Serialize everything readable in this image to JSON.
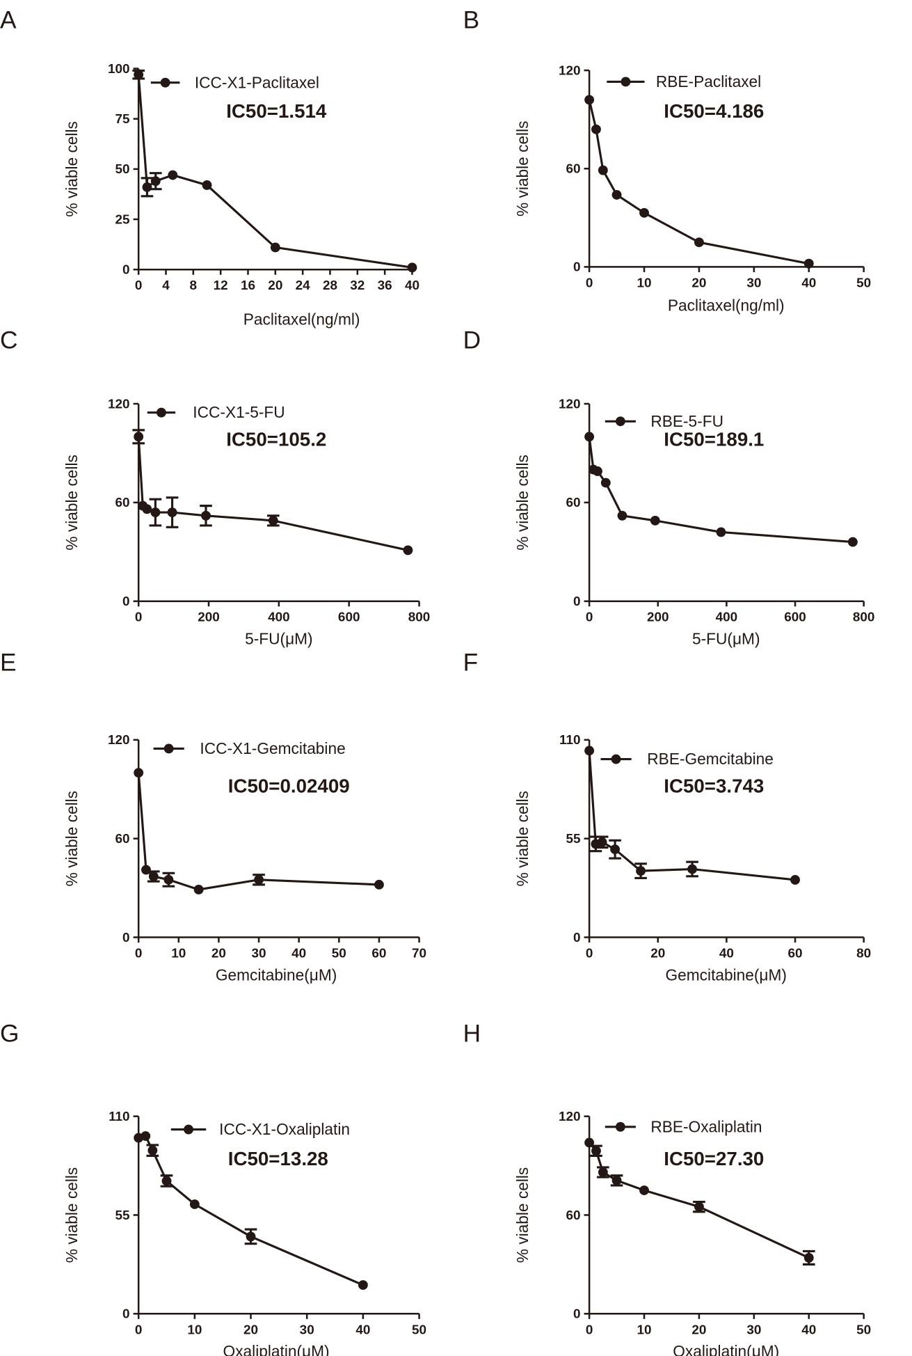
{
  "colors": {
    "ink": "#231815",
    "background": "#ffffff"
  },
  "chart_data": [
    {
      "panel": "A",
      "type": "line",
      "legend": "ICC-X1-Paclitaxel",
      "ic50": "IC50=1.514",
      "xlabel": "Paclitaxel(ng/ml)",
      "ylabel": "% viable cells",
      "xlim": [
        0,
        40
      ],
      "xticks": [
        0,
        4,
        8,
        12,
        16,
        20,
        24,
        28,
        32,
        36,
        40
      ],
      "ylim": [
        0,
        100
      ],
      "yticks": [
        0,
        25,
        50,
        75,
        100
      ],
      "x": [
        0,
        1.25,
        2.5,
        5,
        10,
        20,
        40
      ],
      "y": [
        97,
        41,
        44,
        47,
        42,
        11,
        1
      ],
      "err": [
        2,
        4.5,
        4,
        0,
        0,
        0,
        0
      ]
    },
    {
      "panel": "B",
      "type": "line",
      "legend": "RBE-Paclitaxel",
      "ic50": "IC50=4.186",
      "xlabel": "Paclitaxel(ng/ml)",
      "ylabel": "% viable cells",
      "xlim": [
        0,
        50
      ],
      "xticks": [
        0,
        10,
        20,
        30,
        40,
        50
      ],
      "ylim": [
        0,
        120
      ],
      "yticks": [
        0,
        60,
        120
      ],
      "x": [
        0,
        1.25,
        2.5,
        5,
        10,
        20,
        40
      ],
      "y": [
        102,
        84,
        59,
        44,
        33,
        15,
        2
      ],
      "err": [
        0,
        0,
        0,
        0,
        0,
        0,
        0
      ]
    },
    {
      "panel": "C",
      "type": "line",
      "legend": "ICC-X1-5-FU",
      "ic50": "IC50=105.2",
      "xlabel": "5-FU(μM)",
      "ylabel": "% viable cells",
      "xlim": [
        0,
        800
      ],
      "xticks": [
        0,
        200,
        400,
        600,
        800
      ],
      "ylim": [
        0,
        120
      ],
      "yticks": [
        0,
        60,
        120
      ],
      "x": [
        0,
        12,
        24,
        48,
        96,
        192,
        384,
        768
      ],
      "y": [
        100,
        58,
        56,
        54,
        54,
        52,
        49,
        31
      ],
      "err": [
        4,
        0,
        0,
        8,
        9,
        6,
        3,
        0
      ]
    },
    {
      "panel": "D",
      "type": "line",
      "legend": "RBE-5-FU",
      "ic50": "IC50=189.1",
      "xlabel": "5-FU(μM)",
      "ylabel": "% viable cells",
      "xlim": [
        0,
        800
      ],
      "xticks": [
        0,
        200,
        400,
        600,
        800
      ],
      "ylim": [
        0,
        120
      ],
      "yticks": [
        0,
        60,
        120
      ],
      "x": [
        0,
        12,
        24,
        48,
        96,
        192,
        384,
        768
      ],
      "y": [
        100,
        80,
        79,
        72,
        52,
        49,
        42,
        36
      ],
      "err": [
        0,
        0,
        0,
        0,
        0,
        0,
        0,
        0
      ]
    },
    {
      "panel": "E",
      "type": "line",
      "legend": "ICC-X1-Gemcitabine",
      "ic50": "IC50=0.02409",
      "xlabel": "Gemcitabine(μM)",
      "ylabel": "% viable cells",
      "xlim": [
        0,
        70
      ],
      "xticks": [
        0,
        10,
        20,
        30,
        40,
        50,
        60,
        70
      ],
      "ylim": [
        0,
        120
      ],
      "yticks": [
        0,
        60,
        120
      ],
      "x": [
        0,
        1.875,
        3.75,
        7.5,
        15,
        30,
        60
      ],
      "y": [
        100,
        41,
        37,
        35,
        29,
        35,
        32
      ],
      "err": [
        0,
        0,
        3,
        4,
        0,
        3,
        0
      ]
    },
    {
      "panel": "F",
      "type": "line",
      "legend": "RBE-Gemcitabine",
      "ic50": "IC50=3.743",
      "xlabel": "Gemcitabine(μM)",
      "ylabel": "% viable cells",
      "xlim": [
        0,
        80
      ],
      "xticks": [
        0,
        20,
        40,
        60,
        80
      ],
      "ylim": [
        0,
        110
      ],
      "yticks": [
        0,
        55,
        110
      ],
      "x": [
        0,
        1.875,
        3.75,
        7.5,
        15,
        30,
        60
      ],
      "y": [
        104,
        52,
        53,
        49,
        37,
        38,
        32
      ],
      "err": [
        0,
        4,
        3,
        5,
        4,
        4,
        0
      ]
    },
    {
      "panel": "G",
      "type": "line",
      "legend": "ICC-X1-Oxaliplatin",
      "ic50": "IC50=13.28",
      "xlabel": "Oxaliplatin(μM)",
      "ylabel": "% viable cells",
      "xlim": [
        0,
        50
      ],
      "xticks": [
        0,
        10,
        20,
        30,
        40,
        50
      ],
      "ylim": [
        0,
        110
      ],
      "yticks": [
        0,
        55,
        110
      ],
      "x": [
        0,
        1.25,
        2.5,
        5,
        10,
        20,
        40
      ],
      "y": [
        98,
        99,
        91,
        74,
        61,
        43,
        16
      ],
      "err": [
        0,
        0,
        3,
        3,
        0,
        4,
        0
      ]
    },
    {
      "panel": "H",
      "type": "line",
      "legend": "RBE-Oxaliplatin",
      "ic50": "IC50=27.30",
      "xlabel": "Oxaliplatin(μM)",
      "ylabel": "% viable cells",
      "xlim": [
        0,
        50
      ],
      "xticks": [
        0,
        10,
        20,
        30,
        40,
        50
      ],
      "ylim": [
        0,
        120
      ],
      "yticks": [
        0,
        60,
        120
      ],
      "x": [
        0,
        1.25,
        2.5,
        5,
        10,
        20,
        40
      ],
      "y": [
        104,
        99,
        86,
        81,
        75,
        65,
        34
      ],
      "err": [
        0,
        3,
        3,
        3,
        0,
        3,
        4
      ]
    }
  ]
}
